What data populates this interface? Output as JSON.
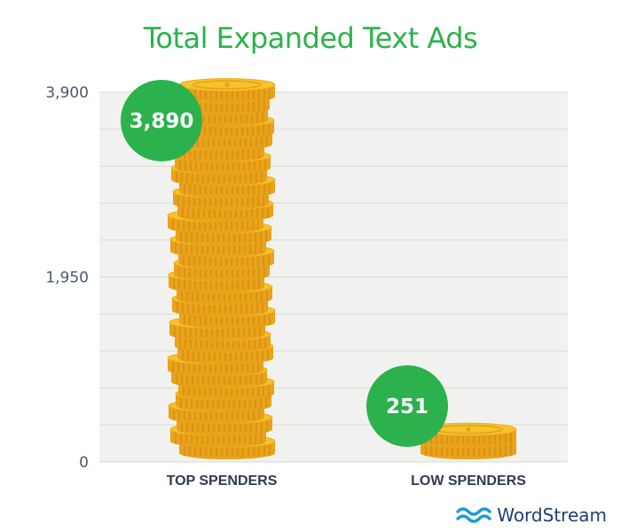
{
  "chart_data": {
    "type": "bar",
    "title": "Total Expanded Text Ads",
    "categories": [
      "TOP SPENDERS",
      "LOW SPENDERS"
    ],
    "values": [
      3890,
      251
    ],
    "value_labels": [
      "3,890",
      "251"
    ],
    "ylim": [
      0,
      3900
    ],
    "yticks": [
      0,
      1950,
      3900
    ],
    "ytick_labels": [
      "0",
      "1,950",
      "3,900"
    ],
    "grid": true,
    "bar_style": "stacked gold coins",
    "colors": {
      "title": "#2bb24c",
      "badge": "#2bb24c",
      "coin_face": "#f6c32a",
      "coin_edge": "#e9a21a",
      "plot_bg": "#f1f2ef",
      "grid": "#d9dbd6"
    }
  },
  "brand": {
    "name": "WordStream",
    "icon": "wave-logo-icon",
    "color": "#1f3f6e",
    "icon_color": "#1d9ad6"
  }
}
